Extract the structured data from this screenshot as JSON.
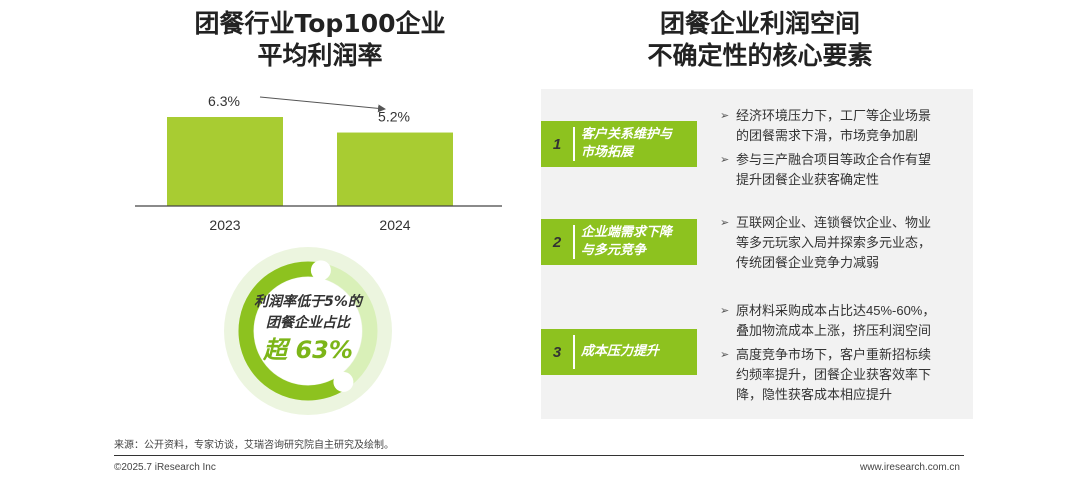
{
  "left_title": {
    "line1": "团餐行业Top100企业",
    "line2": "平均利润率"
  },
  "right_title": {
    "line1": "团餐企业利润空间",
    "line2": "不确定性的核心要素"
  },
  "chart_data": [
    {
      "type": "bar",
      "title": "团餐行业Top100企业平均利润率",
      "categories": [
        "2023",
        "2024"
      ],
      "values": [
        6.3,
        5.2
      ],
      "value_labels": [
        "6.3%",
        "5.2%"
      ],
      "unit": "%",
      "ylim": [
        0,
        6.5
      ],
      "grid": false,
      "color": "#a8cc32",
      "trend_arrow": true
    },
    {
      "type": "pie",
      "variant": "donut",
      "label_lines": [
        "利润率低于5%的",
        "团餐企业占比"
      ],
      "value_label": "超 63%",
      "value": 63,
      "colors": {
        "value": "#8dc21f",
        "remainder": "#d9f0b8",
        "outer": "#ecf5df"
      }
    }
  ],
  "factors": [
    {
      "number": "1",
      "label": "客户关系维护与\n市场拓展",
      "bullets": [
        "经济环境压力下，工厂等企业场景\n的团餐需求下滑，市场竞争加剧",
        "参与三产融合项目等政企合作有望\n提升团餐企业获客确定性"
      ]
    },
    {
      "number": "2",
      "label": "企业端需求下降\n与多元竞争",
      "bullets": [
        "互联网企业、连锁餐饮企业、物业\n等多元玩家入局并探索多元业态，\n传统团餐企业竞争力减弱"
      ]
    },
    {
      "number": "3",
      "label": "成本压力提升",
      "bullets": [
        "原材料采购成本占比达45%-60%，\n叠加物流成本上涨，挤压利润空间",
        "高度竞争市场下，客户重新招标续\n约频率提升，团餐企业获客效率下\n降，隐性获客成本相应提升"
      ]
    }
  ],
  "arrow_glyph": "➢",
  "colors": {
    "accent": "#8dc21f",
    "panel": "#f2f2f2"
  },
  "footer": {
    "source": "来源：公开资料，专家访谈，艾瑞咨询研究院自主研究及绘制。",
    "copyright": "©2025.7 iResearch Inc",
    "website": "www.iresearch.com.cn"
  }
}
